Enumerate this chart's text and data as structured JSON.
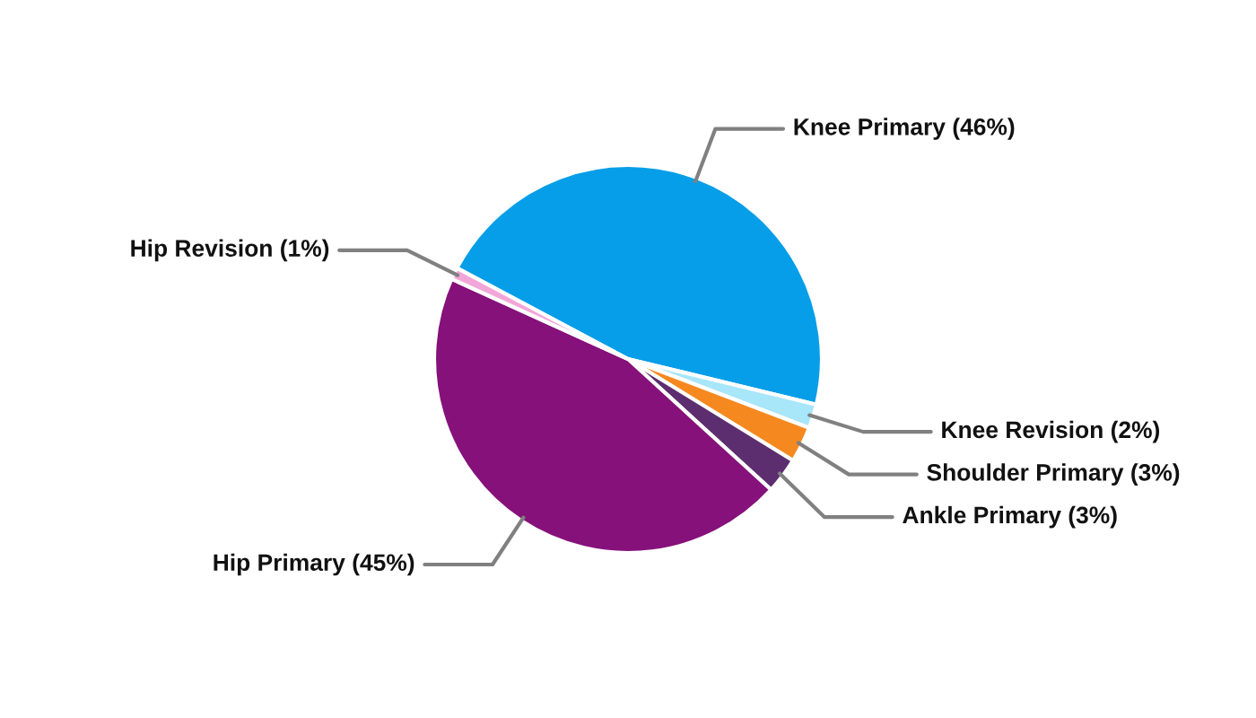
{
  "chart_data": {
    "type": "pie",
    "categories": [
      "Knee Primary (46%)",
      "Knee Revision (2%)",
      "Shoulder Primary (3%)",
      "Ankle Primary (3%)",
      "Hip Primary (45%)",
      "Hip Revision (1%)"
    ],
    "values": [
      46,
      2,
      3,
      3,
      45,
      1
    ],
    "colors": [
      "#069ee8",
      "#a8e6fa",
      "#f5891f",
      "#5c2e6f",
      "#86117a",
      "#f2a6d8"
    ],
    "legend": false
  }
}
